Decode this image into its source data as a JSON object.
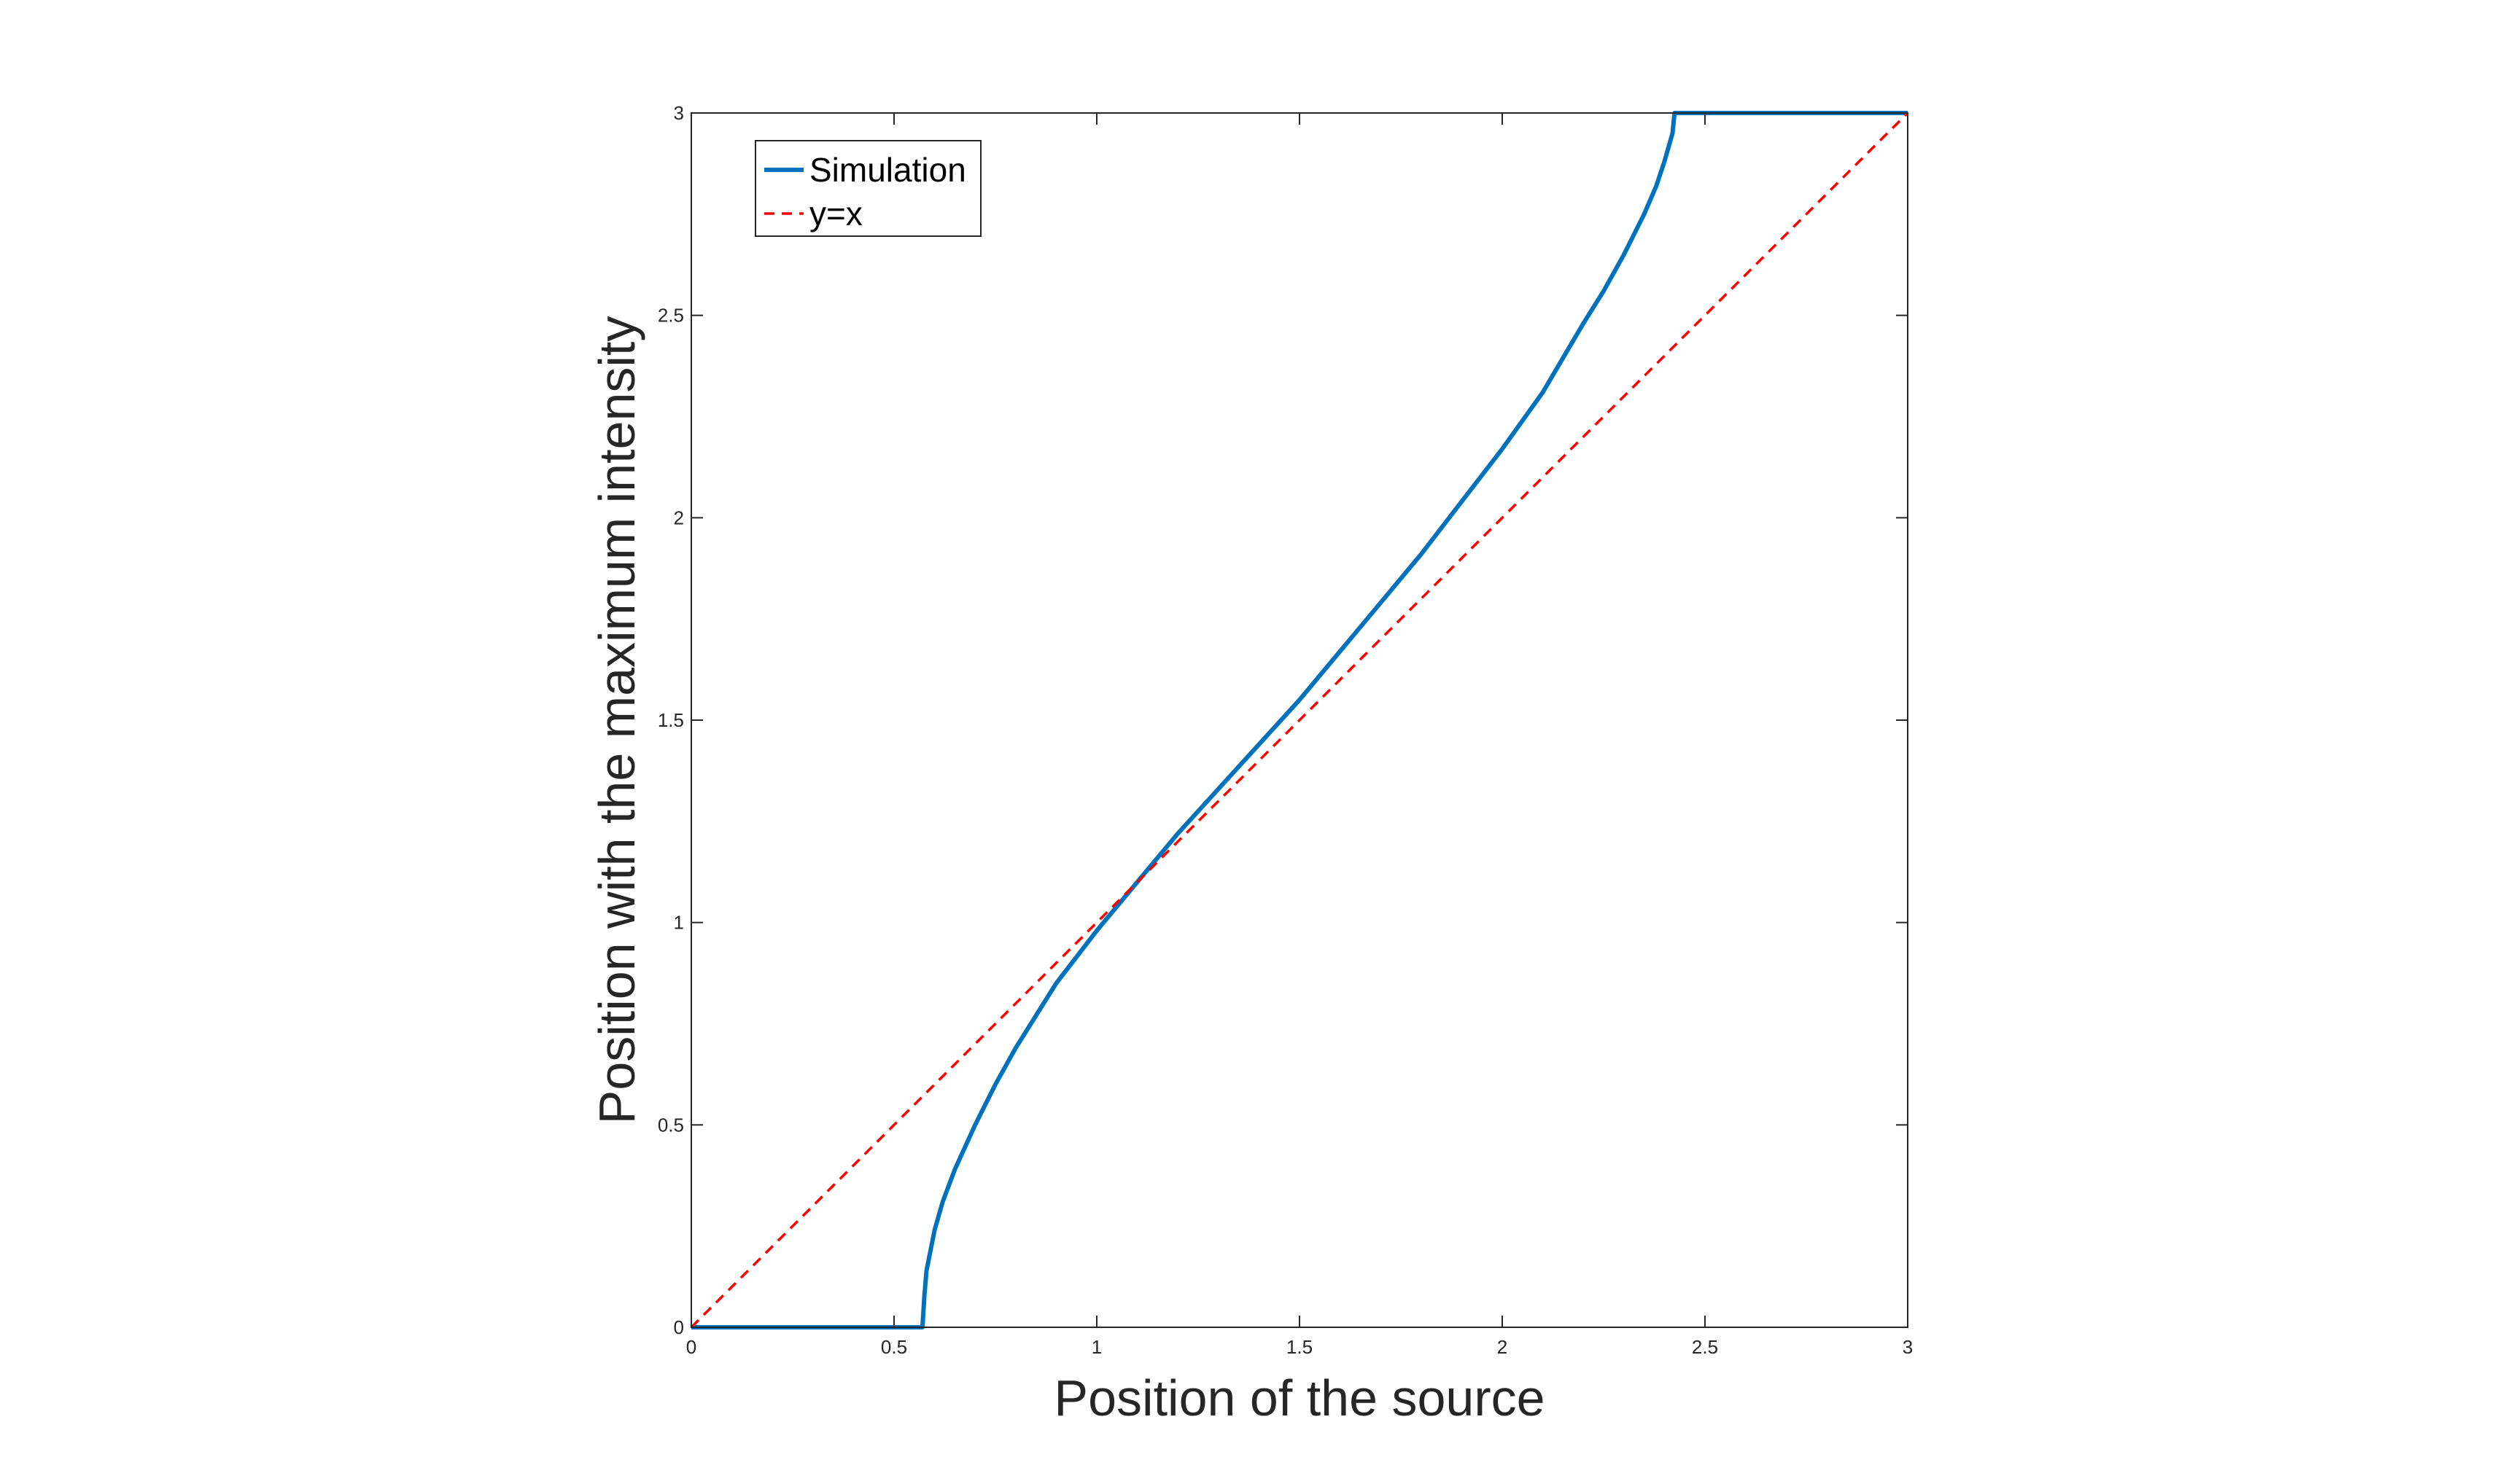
{
  "chart_data": {
    "type": "line",
    "xlabel": "Position of the source",
    "ylabel": "Position with the maximum intensity",
    "xlim": [
      0,
      3
    ],
    "ylim": [
      0,
      3
    ],
    "xticks": [
      "0",
      "0.5",
      "1",
      "1.5",
      "2",
      "2.5",
      "3"
    ],
    "yticks": [
      "0",
      "0.5",
      "1",
      "1.5",
      "2",
      "2.5",
      "3"
    ],
    "grid": false,
    "legend_position": "top-left",
    "series": [
      {
        "name": "Simulation",
        "color": "#0072BD",
        "style": "solid",
        "x": [
          0,
          0.57,
          0.575,
          0.58,
          0.6,
          0.62,
          0.65,
          0.7,
          0.75,
          0.8,
          0.85,
          0.9,
          1.0,
          1.1,
          1.2,
          1.3,
          1.4,
          1.5,
          1.6,
          1.7,
          1.8,
          1.9,
          2.0,
          2.1,
          2.2,
          2.25,
          2.3,
          2.35,
          2.38,
          2.4,
          2.42,
          2.425,
          2.43,
          3.0
        ],
        "y": [
          0,
          0,
          0.08,
          0.14,
          0.24,
          0.31,
          0.39,
          0.5,
          0.6,
          0.69,
          0.77,
          0.85,
          0.98,
          1.1,
          1.22,
          1.33,
          1.44,
          1.55,
          1.67,
          1.79,
          1.91,
          2.04,
          2.17,
          2.31,
          2.48,
          2.56,
          2.65,
          2.75,
          2.82,
          2.88,
          2.95,
          3.0,
          3.0,
          3.0
        ]
      },
      {
        "name": "y=x",
        "color": "#FF0000",
        "style": "dashed",
        "x": [
          0,
          3
        ],
        "y": [
          0,
          3
        ]
      }
    ]
  }
}
